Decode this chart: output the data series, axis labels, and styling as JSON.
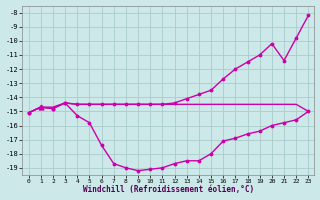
{
  "xlabel": "Windchill (Refroidissement éolien,°C)",
  "background_color": "#cce8e8",
  "grid_color": "#aacccc",
  "line_color": "#cc00aa",
  "x_values": [
    0,
    1,
    2,
    3,
    4,
    5,
    6,
    7,
    8,
    9,
    10,
    11,
    12,
    13,
    14,
    15,
    16,
    17,
    18,
    19,
    20,
    21,
    22,
    23
  ],
  "line1": [
    -15.1,
    -14.7,
    -14.7,
    -14.4,
    -14.5,
    -14.5,
    -14.5,
    -14.5,
    -14.5,
    -14.5,
    -14.5,
    -14.5,
    -14.5,
    -14.5,
    -14.5,
    -14.5,
    -14.5,
    -14.5,
    -14.5,
    -14.5,
    -14.5,
    -14.5,
    -14.5,
    -15.0
  ],
  "line2": [
    -15.1,
    -14.7,
    -14.8,
    -14.4,
    -15.3,
    -15.8,
    -17.4,
    -18.7,
    -19.0,
    -19.2,
    -19.1,
    -19.0,
    -18.7,
    -18.5,
    -18.5,
    -18.0,
    -17.1,
    -16.9,
    -16.6,
    -16.4,
    -16.0,
    -15.8,
    -15.6,
    -15.0
  ],
  "line3": [
    -15.1,
    -14.7,
    -14.8,
    -14.4,
    -14.5,
    -14.5,
    -14.5,
    -14.5,
    -14.5,
    -14.5,
    -14.5,
    -14.5,
    -14.4,
    -14.1,
    -13.8,
    -13.5,
    -12.7,
    -12.0,
    -11.5,
    -11.0,
    -10.2,
    -11.4,
    -9.8,
    -8.2
  ],
  "ylim": [
    -19.5,
    -7.5
  ],
  "yticks": [
    -19,
    -18,
    -17,
    -16,
    -15,
    -14,
    -13,
    -12,
    -11,
    -10,
    -9,
    -8
  ],
  "xticks": [
    0,
    1,
    2,
    3,
    4,
    5,
    6,
    7,
    8,
    9,
    10,
    11,
    12,
    13,
    14,
    15,
    16,
    17,
    18,
    19,
    20,
    21,
    22,
    23
  ],
  "xlim": [
    -0.5,
    23.5
  ]
}
